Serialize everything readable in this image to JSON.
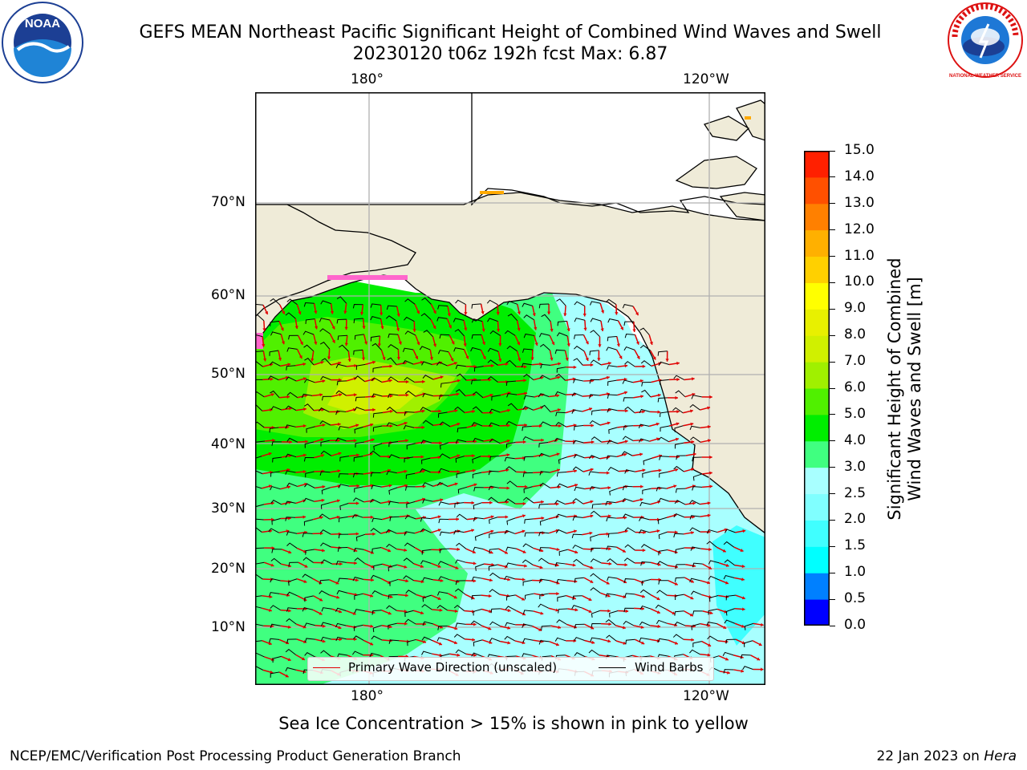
{
  "title_line1": "GEFS MEAN Northeast Pacific Significant Height of Combined Wind Waves and Swell",
  "title_line2": "20230120 t06z 192h fcst   Max: 6.87",
  "logos": {
    "left": "noaa-logo",
    "right": "national-weather-service-logo",
    "left_text": "NOAA",
    "right_text": "NATIONAL WEATHER SERVICE"
  },
  "map": {
    "projection_labels_top": [
      "180°",
      "120°W"
    ],
    "projection_labels_bottom": [
      "180°",
      "120°W"
    ],
    "lat_labels": [
      "70°N",
      "60°N",
      "50°N",
      "40°N",
      "30°N",
      "20°N",
      "10°N"
    ],
    "land_color": "#efebd8",
    "coast_color": "#000000",
    "grid_color": "#b0b0b0"
  },
  "colorbar": {
    "ticks": [
      "0.0",
      "0.5",
      "1.0",
      "1.5",
      "2.0",
      "2.5",
      "3.0",
      "4.0",
      "5.0",
      "6.0",
      "7.0",
      "8.0",
      "9.0",
      "10.0",
      "11.0",
      "12.0",
      "13.0",
      "14.0",
      "15.0"
    ],
    "colors": [
      "#0000ff",
      "#0080ff",
      "#00ffff",
      "#40ffff",
      "#80ffff",
      "#a8ffff",
      "#40ff80",
      "#00ee00",
      "#50f000",
      "#a0f000",
      "#d0f000",
      "#e8f000",
      "#ffff00",
      "#ffd000",
      "#ffb000",
      "#ff8000",
      "#ff5000",
      "#ff2000"
    ],
    "title": "Significant Height of Combined\nWind Waves and Swell [m]",
    "title_line1": "Significant Height of Combined",
    "title_line2": "Wind Waves and Swell [m]"
  },
  "legend": {
    "primary_label": "Primary Wave Direction (unscaled)",
    "primary_color": "#e00000",
    "barbs_label": "Wind Barbs",
    "barbs_color": "#000000"
  },
  "footer_note": "Sea Ice Concentration > 15% is shown in pink to yellow",
  "credit": "NCEP/EMC/Verification Post Processing Product Generation Branch",
  "date_prefix": "22 Jan 2023 on ",
  "date_host": "Hera"
}
